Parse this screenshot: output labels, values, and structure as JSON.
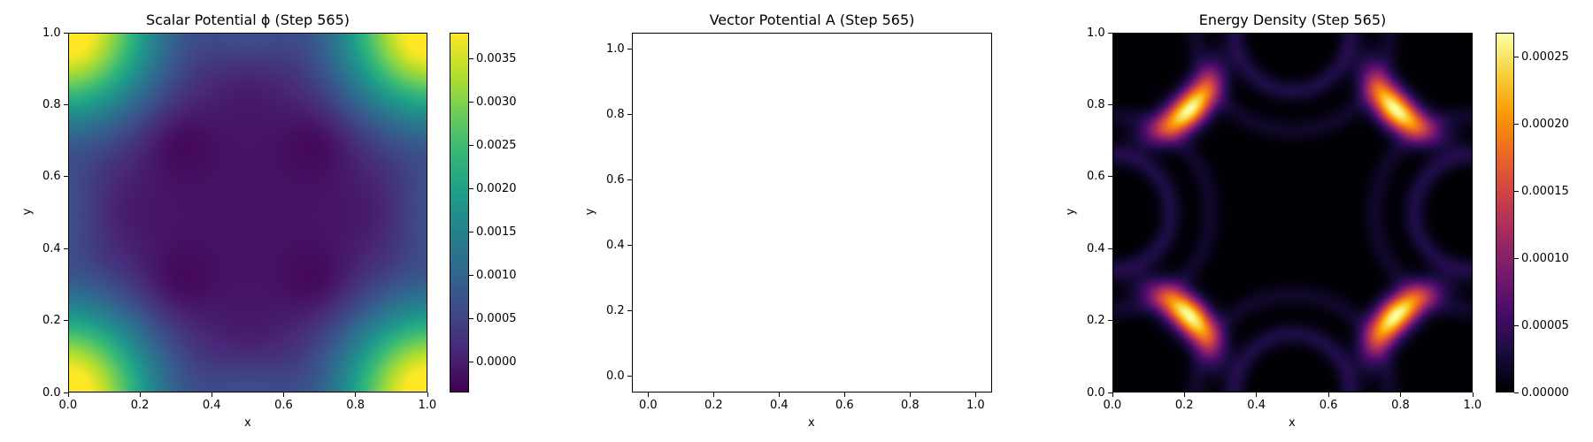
{
  "chart_data": [
    {
      "type": "heatmap",
      "title": "Scalar Potential ϕ (Step 565)",
      "xlabel": "x",
      "ylabel": "y",
      "xlim": [
        0.0,
        1.0
      ],
      "ylim": [
        0.0,
        1.0
      ],
      "x_ticks": [
        "0.0",
        "0.2",
        "0.4",
        "0.6",
        "0.8",
        "1.0"
      ],
      "y_ticks": [
        "0.0",
        "0.2",
        "0.4",
        "0.6",
        "0.8",
        "1.0"
      ],
      "colormap": "viridis",
      "colorbar": {
        "range": [
          -0.00035,
          0.0038
        ],
        "ticks": [
          -0.0,
          0.0005,
          0.001,
          0.0015,
          0.002,
          0.0025,
          0.003,
          0.0035
        ],
        "tick_labels": [
          "0.0000",
          "0.0005",
          "0.0010",
          "0.0015",
          "0.0020",
          "0.0025",
          "0.0030",
          "0.0035"
        ]
      }
    },
    {
      "type": "line",
      "title": "Vector Potential A (Step 565)",
      "xlabel": "x",
      "ylabel": "y",
      "xlim": [
        -0.05,
        1.05
      ],
      "ylim": [
        -0.05,
        1.05
      ],
      "x_ticks": [
        "0.0",
        "0.2",
        "0.4",
        "0.6",
        "0.8",
        "1.0"
      ],
      "y_ticks": [
        "0.0",
        "0.2",
        "0.4",
        "0.6",
        "0.8",
        "1.0"
      ],
      "series": []
    },
    {
      "type": "heatmap",
      "title": "Energy Density (Step 565)",
      "xlabel": "x",
      "ylabel": "y",
      "xlim": [
        0.0,
        1.0
      ],
      "ylim": [
        0.0,
        1.0
      ],
      "x_ticks": [
        "0.0",
        "0.2",
        "0.4",
        "0.6",
        "0.8",
        "1.0"
      ],
      "y_ticks": [
        "0.0",
        "0.2",
        "0.4",
        "0.6",
        "0.8",
        "1.0"
      ],
      "colormap": "inferno",
      "colorbar": {
        "range": [
          0.0,
          0.000268
        ],
        "ticks": [
          0.0,
          5e-05,
          0.0001,
          0.00015,
          0.0002,
          0.00025
        ],
        "tick_labels": [
          "0.00000",
          "0.00005",
          "0.00010",
          "0.00015",
          "0.00020",
          "0.00025"
        ]
      }
    }
  ]
}
